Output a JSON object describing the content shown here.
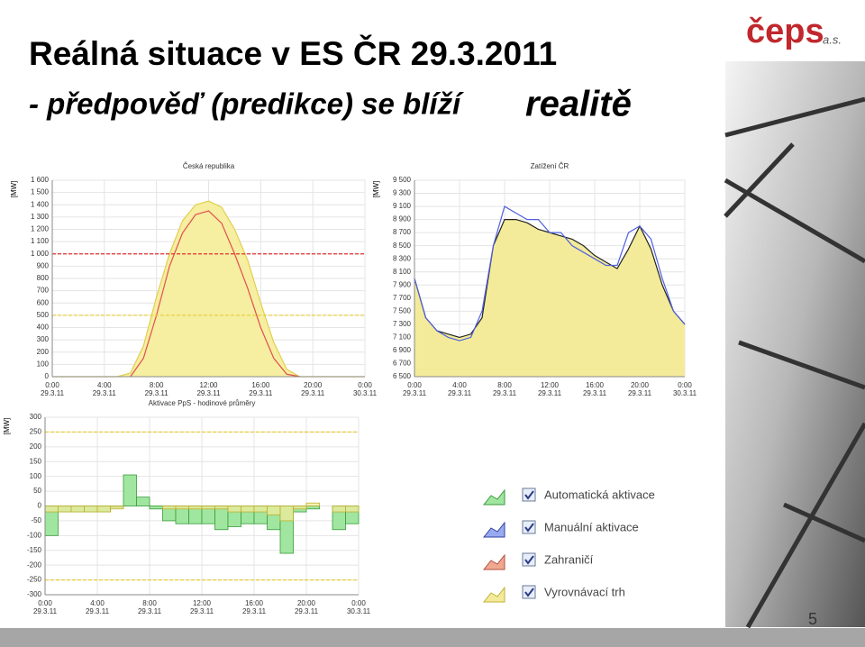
{
  "slide": {
    "title_line1": "Reálná situace v ES ČR 29.3.2011",
    "title_line2": "- předpověď (predikce) se blíží",
    "title_line2_end": "realitě",
    "logo": "čeps",
    "logo_suffix": "a.s.",
    "page_number": "5"
  },
  "chart_data": [
    {
      "type": "line",
      "title": "Česká republika",
      "y_label": "[MW]",
      "x": [
        0,
        1,
        2,
        3,
        4,
        5,
        6,
        7,
        8,
        9,
        10,
        11,
        12,
        13,
        14,
        15,
        16,
        17,
        18,
        19,
        20,
        21,
        22,
        23,
        24
      ],
      "xlim": [
        0,
        24
      ],
      "xticks": [
        {
          "value": 0,
          "label": "0:00"
        },
        {
          "value": 4,
          "label": "4:00"
        },
        {
          "value": 8,
          "label": "8:00"
        },
        {
          "value": 12,
          "label": "12:00"
        },
        {
          "value": 16,
          "label": "16:00"
        },
        {
          "value": 20,
          "label": "20:00"
        },
        {
          "value": 24,
          "label": "0:00"
        }
      ],
      "xdates": [
        "29.3.11",
        "29.3.11",
        "29.3.11",
        "29.3.11",
        "29.3.11",
        "29.3.11",
        "30.3.11"
      ],
      "ylim": [
        0,
        1600
      ],
      "yticks": [
        0,
        100,
        200,
        300,
        400,
        500,
        600,
        700,
        800,
        900,
        {
          "value": 1000,
          "label": "1 000"
        },
        {
          "value": 1100,
          "label": "1 100"
        },
        {
          "value": 1200,
          "label": "1 200"
        },
        {
          "value": 1300,
          "label": "1 300"
        },
        {
          "value": 1400,
          "label": "1 400"
        },
        {
          "value": 1500,
          "label": "1 500"
        },
        {
          "value": 1600,
          "label": "1 600"
        }
      ],
      "grid": true,
      "ref_lines": [
        {
          "value": 1000,
          "color": "#e03030"
        },
        {
          "value": 500,
          "color": "#e8d040"
        }
      ],
      "series": [
        {
          "kind": "area",
          "color": "#e0d050",
          "fill": "#f6eea0",
          "values": [
            0,
            0,
            0,
            0,
            0,
            0,
            30,
            250,
            650,
            1000,
            1270,
            1400,
            1430,
            1380,
            1200,
            950,
            600,
            280,
            60,
            0,
            0,
            0,
            0,
            0,
            0
          ]
        },
        {
          "kind": "line",
          "color": "#e05050",
          "values": [
            null,
            null,
            null,
            null,
            null,
            null,
            0,
            150,
            500,
            900,
            1170,
            1320,
            1350,
            1250,
            1000,
            720,
            400,
            150,
            20,
            0,
            null,
            null,
            null,
            null,
            null
          ]
        }
      ]
    },
    {
      "type": "line",
      "title": "Zatížení ČR",
      "y_label": "[MW]",
      "x": [
        0,
        1,
        2,
        3,
        4,
        5,
        6,
        7,
        8,
        9,
        10,
        11,
        12,
        13,
        14,
        15,
        16,
        17,
        18,
        19,
        20,
        21,
        22,
        23,
        24
      ],
      "xlim": [
        0,
        24
      ],
      "xticks": [
        {
          "value": 0,
          "label": "0:00"
        },
        {
          "value": 4,
          "label": "4:00"
        },
        {
          "value": 8,
          "label": "8:00"
        },
        {
          "value": 12,
          "label": "12:00"
        },
        {
          "value": 16,
          "label": "16:00"
        },
        {
          "value": 20,
          "label": "20:00"
        },
        {
          "value": 24,
          "label": "0:00"
        }
      ],
      "xdates": [
        "29.3.11",
        "29.3.11",
        "29.3.11",
        "29.3.11",
        "29.3.11",
        "29.3.11",
        "30.3.11"
      ],
      "ylim": [
        6500,
        9500
      ],
      "yticks": [
        {
          "value": 6500,
          "label": "6 500"
        },
        {
          "value": 6700,
          "label": "6 700"
        },
        {
          "value": 6900,
          "label": "6 900"
        },
        {
          "value": 7100,
          "label": "7 100"
        },
        {
          "value": 7300,
          "label": "7 300"
        },
        {
          "value": 7500,
          "label": "7 500"
        },
        {
          "value": 7700,
          "label": "7 700"
        },
        {
          "value": 7900,
          "label": "7 900"
        },
        {
          "value": 8100,
          "label": "8 100"
        },
        {
          "value": 8300,
          "label": "8 300"
        },
        {
          "value": 8500,
          "label": "8 500"
        },
        {
          "value": 8700,
          "label": "8 700"
        },
        {
          "value": 8900,
          "label": "8 900"
        },
        {
          "value": 9100,
          "label": "9 100"
        },
        {
          "value": 9300,
          "label": "9 300"
        },
        {
          "value": 9500,
          "label": "9 500"
        }
      ],
      "grid": true,
      "ref_lines": [],
      "series": [
        {
          "kind": "area",
          "color": "#222222",
          "fill": "#f3eb9a",
          "values": [
            8000,
            7400,
            7200,
            7150,
            7100,
            7150,
            7400,
            8500,
            8900,
            8900,
            8850,
            8750,
            8700,
            8650,
            8600,
            8500,
            8350,
            8250,
            8150,
            8450,
            8800,
            8450,
            7900,
            7500,
            7300
          ]
        },
        {
          "kind": "line",
          "color": "#5060e0",
          "values": [
            8000,
            7400,
            7200,
            7100,
            7050,
            7100,
            7500,
            8500,
            9100,
            9000,
            8900,
            8900,
            8700,
            8700,
            8500,
            8400,
            8300,
            8200,
            8200,
            8700,
            8800,
            8600,
            8000,
            7500,
            7300
          ]
        }
      ]
    },
    {
      "type": "bar",
      "title": "Aktivace PpS - hodinové průměry",
      "y_label": "[MW]",
      "x": [
        0,
        1,
        2,
        3,
        4,
        5,
        6,
        7,
        8,
        9,
        10,
        11,
        12,
        13,
        14,
        15,
        16,
        17,
        18,
        19,
        20,
        21,
        22,
        23
      ],
      "xlim": [
        0,
        24
      ],
      "xticks": [
        {
          "value": 0,
          "label": "0:00"
        },
        {
          "value": 4,
          "label": "4:00"
        },
        {
          "value": 8,
          "label": "8:00"
        },
        {
          "value": 12,
          "label": "12:00"
        },
        {
          "value": 16,
          "label": "16:00"
        },
        {
          "value": 20,
          "label": "20:00"
        },
        {
          "value": 24,
          "label": "0:00"
        }
      ],
      "xdates": [
        "29.3.11",
        "29.3.11",
        "29.3.11",
        "29.3.11",
        "29.3.11",
        "29.3.11",
        "30.3.11"
      ],
      "ylim": [
        -300,
        300
      ],
      "yticks": [
        -300,
        -250,
        -200,
        -150,
        -100,
        -50,
        0,
        50,
        100,
        150,
        200,
        250,
        300
      ],
      "grid": true,
      "ref_lines": [
        {
          "value": 250,
          "color": "#e8d040"
        },
        {
          "value": -250,
          "color": "#e8d040"
        }
      ],
      "series": [
        {
          "name": "Automatická aktivace",
          "kind": "bar",
          "color": "#3a9a3a",
          "fill": "#a0e6a0",
          "values": [
            -100,
            -20,
            -20,
            -20,
            -20,
            -5,
            105,
            30,
            -10,
            -50,
            -60,
            -60,
            -60,
            -80,
            -70,
            -60,
            -60,
            -80,
            -160,
            -20,
            -10,
            0,
            -80,
            -60
          ]
        },
        {
          "name": "Manuální aktivace",
          "kind": "bar",
          "color": "#3040a0",
          "fill": "#9aaaf0",
          "values": [
            null,
            null,
            null,
            null,
            null,
            null,
            null,
            null,
            null,
            null,
            null,
            null,
            null,
            null,
            null,
            null,
            null,
            null,
            null,
            null,
            null,
            null,
            null,
            null
          ]
        },
        {
          "name": "Zahraničí",
          "kind": "bar",
          "color": "#b05040",
          "fill": "#f0a890",
          "values": [
            null,
            null,
            null,
            null,
            null,
            null,
            null,
            null,
            null,
            null,
            null,
            null,
            null,
            null,
            null,
            null,
            null,
            null,
            null,
            null,
            null,
            null,
            null,
            null
          ]
        },
        {
          "name": "Vyrovnávací trh",
          "kind": "bar",
          "color": "#c0b030",
          "fill": "#f3eb9a",
          "values": [
            -20,
            -20,
            -20,
            -20,
            -20,
            -10,
            0,
            0,
            0,
            -10,
            -10,
            -10,
            -10,
            -10,
            -20,
            -20,
            -20,
            -30,
            -50,
            -10,
            10,
            0,
            -20,
            -20
          ]
        }
      ]
    }
  ]
}
